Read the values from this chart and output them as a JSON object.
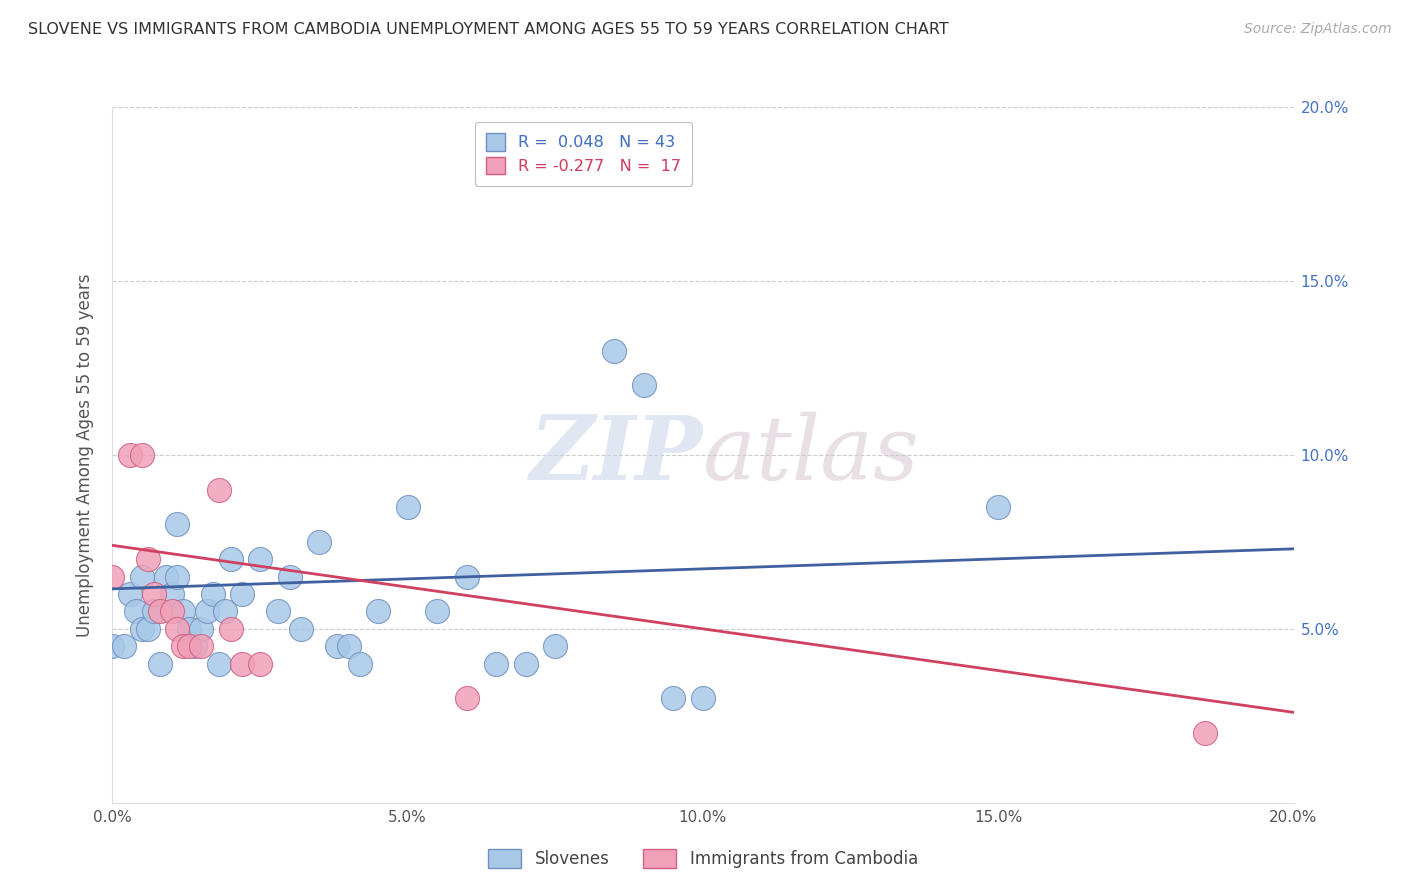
{
  "title": "SLOVENE VS IMMIGRANTS FROM CAMBODIA UNEMPLOYMENT AMONG AGES 55 TO 59 YEARS CORRELATION CHART",
  "source": "Source: ZipAtlas.com",
  "ylabel": "Unemployment Among Ages 55 to 59 years",
  "xlim": [
    0.0,
    0.2
  ],
  "ylim": [
    0.0,
    0.2
  ],
  "xticks": [
    0.0,
    0.05,
    0.1,
    0.15,
    0.2
  ],
  "yticks": [
    0.0,
    0.05,
    0.1,
    0.15,
    0.2
  ],
  "xticklabels": [
    "0.0%",
    "5.0%",
    "10.0%",
    "15.0%",
    "20.0%"
  ],
  "right_yticklabels": [
    "",
    "5.0%",
    "10.0%",
    "15.0%",
    "20.0%"
  ],
  "legend_r1": "R =  0.048   N = 43",
  "legend_r2": "R = -0.277   N =  17",
  "slovene_color": "#a8c8e8",
  "cambodia_color": "#f0a0b8",
  "slovene_edge_color": "#7090c0",
  "cambodia_edge_color": "#d06080",
  "slovene_line_color": "#4060a0",
  "cambodia_line_color": "#d04060",
  "watermark_top": "ZIP",
  "watermark_bottom": "atlas",
  "slovene_points": [
    [
      0.0,
      0.045
    ],
    [
      0.002,
      0.045
    ],
    [
      0.003,
      0.06
    ],
    [
      0.004,
      0.055
    ],
    [
      0.005,
      0.05
    ],
    [
      0.005,
      0.065
    ],
    [
      0.006,
      0.05
    ],
    [
      0.007,
      0.055
    ],
    [
      0.008,
      0.04
    ],
    [
      0.009,
      0.065
    ],
    [
      0.01,
      0.06
    ],
    [
      0.011,
      0.08
    ],
    [
      0.011,
      0.065
    ],
    [
      0.012,
      0.055
    ],
    [
      0.013,
      0.05
    ],
    [
      0.014,
      0.045
    ],
    [
      0.015,
      0.05
    ],
    [
      0.016,
      0.055
    ],
    [
      0.017,
      0.06
    ],
    [
      0.018,
      0.04
    ],
    [
      0.019,
      0.055
    ],
    [
      0.02,
      0.07
    ],
    [
      0.022,
      0.06
    ],
    [
      0.025,
      0.07
    ],
    [
      0.028,
      0.055
    ],
    [
      0.03,
      0.065
    ],
    [
      0.032,
      0.05
    ],
    [
      0.035,
      0.075
    ],
    [
      0.038,
      0.045
    ],
    [
      0.04,
      0.045
    ],
    [
      0.042,
      0.04
    ],
    [
      0.045,
      0.055
    ],
    [
      0.05,
      0.085
    ],
    [
      0.055,
      0.055
    ],
    [
      0.06,
      0.065
    ],
    [
      0.065,
      0.04
    ],
    [
      0.07,
      0.04
    ],
    [
      0.075,
      0.045
    ],
    [
      0.085,
      0.13
    ],
    [
      0.09,
      0.12
    ],
    [
      0.095,
      0.03
    ],
    [
      0.1,
      0.03
    ],
    [
      0.15,
      0.085
    ]
  ],
  "cambodia_points": [
    [
      0.0,
      0.065
    ],
    [
      0.003,
      0.1
    ],
    [
      0.005,
      0.1
    ],
    [
      0.006,
      0.07
    ],
    [
      0.007,
      0.06
    ],
    [
      0.008,
      0.055
    ],
    [
      0.01,
      0.055
    ],
    [
      0.011,
      0.05
    ],
    [
      0.012,
      0.045
    ],
    [
      0.013,
      0.045
    ],
    [
      0.015,
      0.045
    ],
    [
      0.018,
      0.09
    ],
    [
      0.02,
      0.05
    ],
    [
      0.022,
      0.04
    ],
    [
      0.025,
      0.04
    ],
    [
      0.06,
      0.03
    ],
    [
      0.185,
      0.02
    ]
  ],
  "slovene_trend": [
    0.0,
    0.0615,
    0.2,
    0.073
  ],
  "cambodia_trend": [
    0.0,
    0.074,
    0.2,
    0.026
  ]
}
